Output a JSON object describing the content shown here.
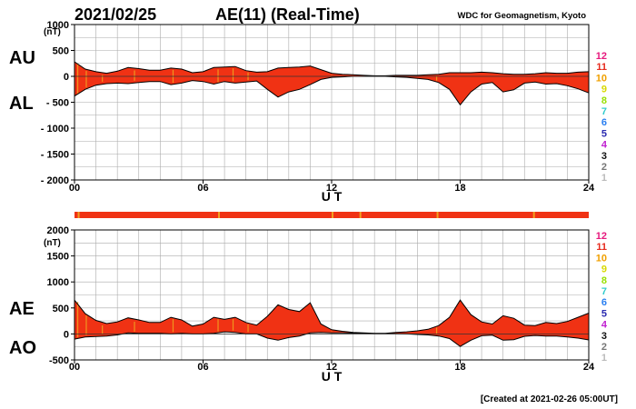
{
  "header": {
    "date": "2021/02/25",
    "title": "AE(11) (Real-Time)",
    "credit": "WDC for Geomagnetism, Kyoto",
    "created": "[Created at 2021-02-26 05:00UT]"
  },
  "legend": [
    {
      "label": "12",
      "color": "#e6197d"
    },
    {
      "label": "11",
      "color": "#e62b1e"
    },
    {
      "label": "10",
      "color": "#f0a000"
    },
    {
      "label": "9",
      "color": "#d8d800"
    },
    {
      "label": "8",
      "color": "#99e000"
    },
    {
      "label": "7",
      "color": "#33cccc"
    },
    {
      "label": "6",
      "color": "#2a7ff0"
    },
    {
      "label": "5",
      "color": "#2b2bb0"
    },
    {
      "label": "4",
      "color": "#c020d0"
    },
    {
      "label": "3",
      "color": "#111111"
    },
    {
      "label": "2",
      "color": "#777777"
    },
    {
      "label": "1",
      "color": "#bbbbbb"
    }
  ],
  "colors": {
    "fill": "#f03214",
    "stripe": "#f0a020",
    "line": "#000000",
    "grid": "#aaaaaa"
  },
  "chart_data": [
    {
      "type": "area",
      "title": "AU / AL",
      "xlabel": "U T",
      "ylabel": "(nT)",
      "xlim": [
        0,
        24
      ],
      "ylim": [
        -2000,
        1000
      ],
      "x_ticks": [
        "00",
        "06",
        "12",
        "18",
        "24"
      ],
      "y_ticks": [
        "1000",
        "500",
        "0",
        "- 500",
        "- 1000",
        "- 1500",
        "- 2000"
      ],
      "y_tick_values": [
        1000,
        500,
        0,
        -500,
        -1000,
        -1500,
        -2000
      ],
      "upper_label": "AU",
      "lower_label": "AL",
      "x": [
        0,
        0.5,
        1,
        1.5,
        2,
        2.5,
        3,
        3.5,
        4,
        4.5,
        5,
        5.5,
        6,
        6.5,
        7,
        7.5,
        8,
        8.5,
        9,
        9.5,
        10,
        10.5,
        11,
        11.5,
        12,
        12.5,
        13,
        13.5,
        14,
        14.5,
        15,
        15.5,
        16,
        16.5,
        17,
        17.5,
        18,
        18.5,
        19,
        19.5,
        20,
        20.5,
        21,
        21.5,
        22,
        22.5,
        23,
        23.5,
        24
      ],
      "series": [
        {
          "name": "AU",
          "values": [
            280,
            140,
            90,
            60,
            100,
            170,
            150,
            120,
            120,
            160,
            140,
            70,
            90,
            170,
            180,
            190,
            110,
            80,
            90,
            160,
            170,
            180,
            200,
            130,
            60,
            40,
            30,
            20,
            10,
            10,
            20,
            20,
            20,
            30,
            40,
            70,
            70,
            70,
            80,
            70,
            50,
            40,
            40,
            50,
            70,
            60,
            60,
            80,
            90
          ]
        },
        {
          "name": "AL",
          "values": [
            -380,
            -250,
            -170,
            -140,
            -130,
            -140,
            -120,
            -100,
            -100,
            -160,
            -130,
            -80,
            -100,
            -150,
            -100,
            -130,
            -110,
            -90,
            -250,
            -400,
            -300,
            -250,
            -160,
            -60,
            -20,
            -10,
            0,
            0,
            0,
            0,
            -10,
            -20,
            -40,
            -60,
            -120,
            -250,
            -550,
            -300,
            -150,
            -120,
            -300,
            -260,
            -130,
            -110,
            -150,
            -140,
            -180,
            -240,
            -320
          ]
        }
      ]
    },
    {
      "type": "area",
      "title": "AE / AO",
      "xlabel": "U T",
      "ylabel": "(nT)",
      "xlim": [
        0,
        24
      ],
      "ylim": [
        -500,
        2000
      ],
      "x_ticks": [
        "00",
        "06",
        "12",
        "18",
        "24"
      ],
      "y_ticks": [
        "2000",
        "1500",
        "1000",
        "500",
        "0",
        "-500"
      ],
      "y_tick_values": [
        2000,
        1500,
        1000,
        500,
        0,
        -500
      ],
      "upper_label": "AE",
      "lower_label": "AO",
      "x": [
        0,
        0.5,
        1,
        1.5,
        2,
        2.5,
        3,
        3.5,
        4,
        4.5,
        5,
        5.5,
        6,
        6.5,
        7,
        7.5,
        8,
        8.5,
        9,
        9.5,
        10,
        10.5,
        11,
        11.5,
        12,
        12.5,
        13,
        13.5,
        14,
        14.5,
        15,
        15.5,
        16,
        16.5,
        17,
        17.5,
        18,
        18.5,
        19,
        19.5,
        20,
        20.5,
        21,
        21.5,
        22,
        22.5,
        23,
        23.5,
        24
      ],
      "series": [
        {
          "name": "AE",
          "values": [
            650,
            390,
            260,
            200,
            230,
            310,
            270,
            220,
            220,
            320,
            270,
            150,
            190,
            320,
            280,
            320,
            220,
            170,
            340,
            560,
            470,
            430,
            600,
            190,
            80,
            50,
            30,
            20,
            10,
            10,
            30,
            40,
            60,
            90,
            160,
            320,
            650,
            370,
            230,
            190,
            350,
            300,
            170,
            160,
            220,
            200,
            240,
            320,
            400
          ]
        },
        {
          "name": "AO",
          "values": [
            -100,
            -60,
            -50,
            -40,
            -20,
            20,
            10,
            10,
            10,
            0,
            10,
            0,
            0,
            10,
            40,
            30,
            0,
            0,
            -80,
            -120,
            -70,
            -40,
            20,
            30,
            20,
            20,
            15,
            10,
            5,
            5,
            5,
            0,
            -10,
            -20,
            -40,
            -90,
            -240,
            -120,
            -35,
            -25,
            -120,
            -110,
            -45,
            -30,
            -40,
            -40,
            -60,
            -80,
            -115
          ]
        }
      ]
    }
  ]
}
